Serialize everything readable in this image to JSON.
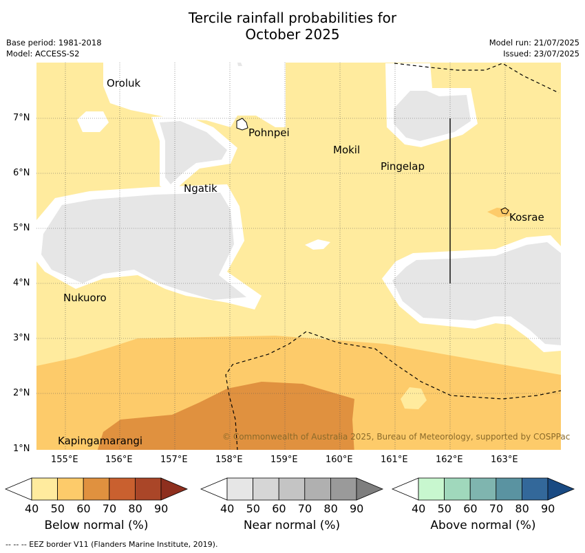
{
  "title": {
    "line1": "Tercile rainfall probabilities for",
    "line2": "October 2025"
  },
  "meta": {
    "base_period": "Base period: 1981-2018",
    "model": "Model: ACCESS-S2",
    "model_run": "Model run: 21/07/2025",
    "issued": "Issued: 23/07/2025"
  },
  "map": {
    "lon_labels": [
      "155°E",
      "156°E",
      "157°E",
      "158°E",
      "159°E",
      "160°E",
      "161°E",
      "162°E",
      "163°E"
    ],
    "lat_labels": [
      "7°N",
      "6°N",
      "5°N",
      "4°N",
      "3°N",
      "2°N",
      "1°N"
    ],
    "places": [
      "Oroluk",
      "Pohnpei",
      "Mokil",
      "Pingelap",
      "Ngatik",
      "Kosrae",
      "Nukuoro",
      "Kapingamarangi"
    ],
    "copyright": "© Commonwealth of Australia 2025, Bureau of Meteorology, supported by COSPPac"
  },
  "colors": {
    "below": [
      "#ffeb9e",
      "#fdcb6a",
      "#e0913f",
      "#c9602f",
      "#aa4628",
      "#8e2f1e"
    ],
    "near": [
      "#e6e6e6",
      "#d6d6d6",
      "#c4c4c4",
      "#b0b0b0",
      "#9a9a9a",
      "#7e7e7e"
    ],
    "above": [
      "#c8f7cf",
      "#a0d8bc",
      "#7fb5af",
      "#5a93a1",
      "#33689a",
      "#194a82"
    ]
  },
  "colorbars": [
    {
      "title": "Below normal (%)",
      "ticks": [
        "40",
        "50",
        "60",
        "70",
        "80",
        "90"
      ]
    },
    {
      "title": "Near normal (%)",
      "ticks": [
        "40",
        "50",
        "60",
        "70",
        "80",
        "90"
      ]
    },
    {
      "title": "Above normal (%)",
      "ticks": [
        "40",
        "50",
        "60",
        "70",
        "80",
        "90"
      ]
    }
  ],
  "footer": "-- -- -- EEZ border V11 (Flanders Marine Institute, 2019)."
}
